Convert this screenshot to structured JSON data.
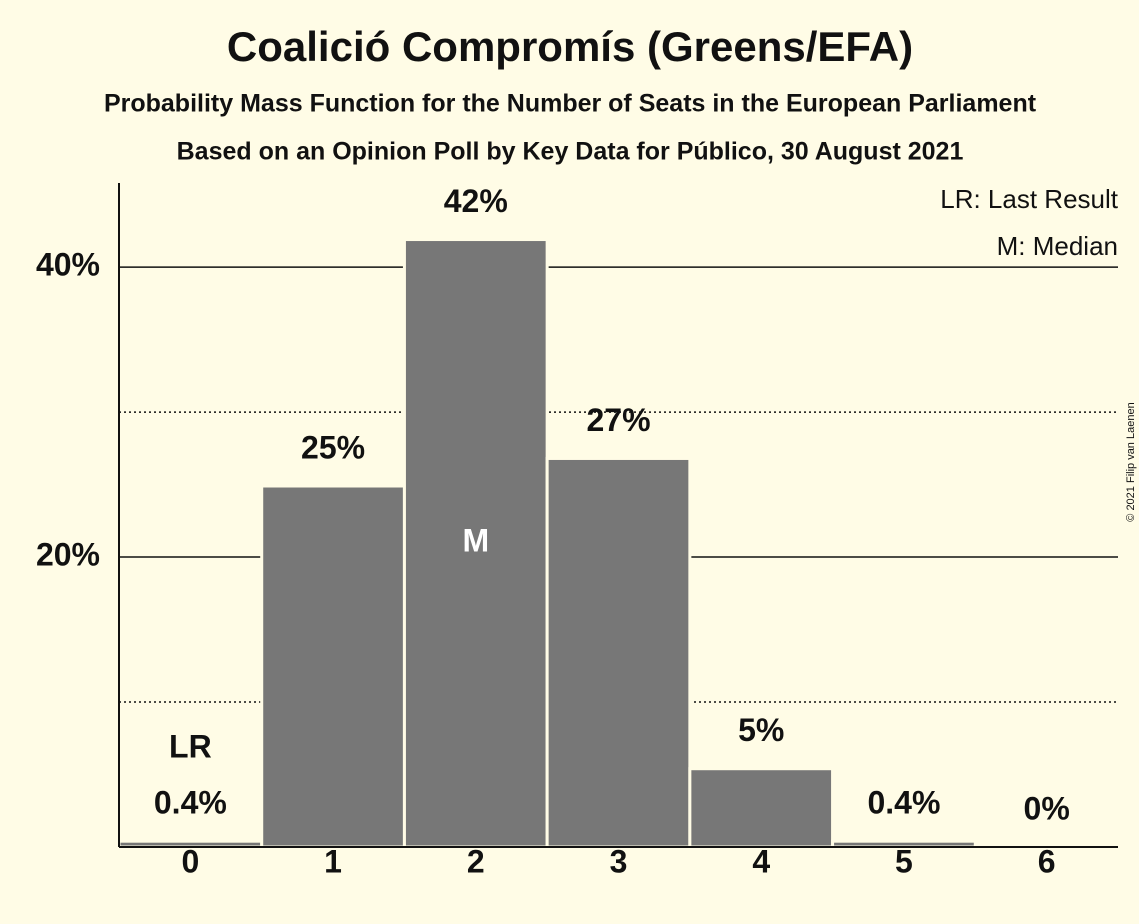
{
  "chart_data": {
    "type": "bar",
    "title": "Coalició Compromís (Greens/EFA)",
    "subtitle": "Probability Mass Function for the Number of Seats in the European Parliament",
    "subtitle2": "Based on an Opinion Poll by Key Data for Público, 30 August 2021",
    "copyright": "© 2021 Filip van Laenen",
    "categories": [
      "0",
      "1",
      "2",
      "3",
      "4",
      "5",
      "6"
    ],
    "values": [
      0.4,
      24.9,
      41.9,
      26.8,
      5.4,
      0.4,
      0
    ],
    "value_labels": [
      "0.4%",
      "25%",
      "42%",
      "27%",
      "5%",
      "0.4%",
      "0%"
    ],
    "color": "#777777",
    "background": "#fffce6",
    "ylim": [
      0,
      45.8
    ],
    "yticks": [
      {
        "value": 20,
        "label": "20%"
      },
      {
        "value": 40,
        "label": "40%"
      }
    ],
    "minor_yticks": [
      10,
      30
    ],
    "grid": true,
    "markers": [
      {
        "category": 0,
        "label": "LR"
      },
      {
        "category": 2,
        "label": "M"
      }
    ],
    "legend": [
      "LR: Last Result",
      "M: Median"
    ],
    "legend_position": "upper right"
  }
}
